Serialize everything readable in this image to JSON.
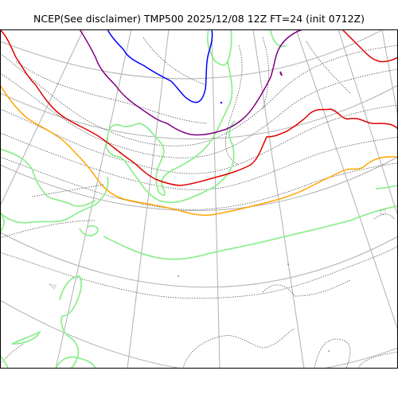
{
  "title": "NCEP(See disclaimer) TMP500 2025/12/08 12Z FT=24 (init 0712Z)",
  "map": {
    "colors": {
      "background": "#ffffff",
      "frame": "#000000",
      "graticule": "#b0b0b0",
      "coastline": "#90ee90",
      "isotherm": "#555555",
      "isotherm_blue": "#0000ff",
      "isotherm_purple": "#800080",
      "isotherm_red": "#e00000",
      "isotherm_orange": "#ffa500"
    }
  }
}
